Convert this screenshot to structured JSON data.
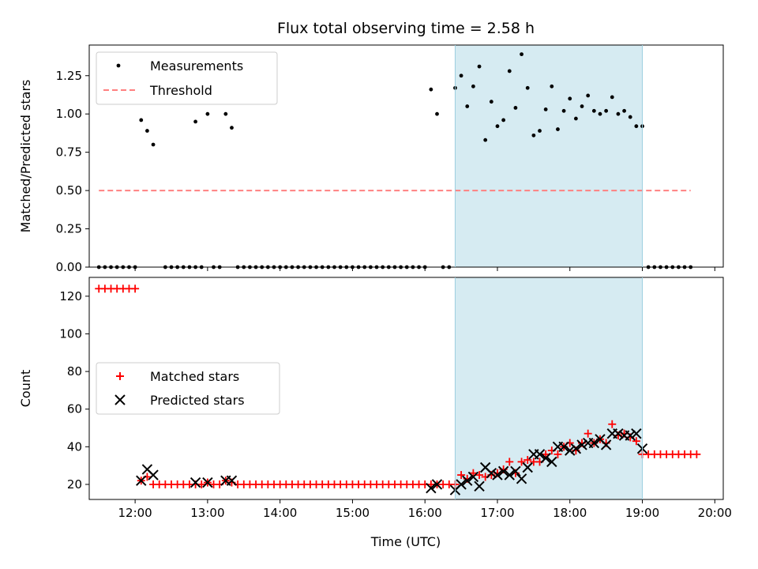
{
  "chart_data": [
    {
      "type": "scatter",
      "title": "Flux total observing time = 2.58 h",
      "ylabel": "Matched/Predicted stars",
      "xlabel": "",
      "xlim": [
        "11:22",
        "20:07"
      ],
      "ylim": [
        0,
        1.45
      ],
      "yticks": [
        "0.00",
        "0.25",
        "0.50",
        "0.75",
        "1.00",
        "1.25"
      ],
      "ytick_values": [
        0,
        0.25,
        0.5,
        0.75,
        1.0,
        1.25
      ],
      "legend_position": "top-left",
      "shaded_region": {
        "from": "16:25",
        "to": "19:00",
        "color": "#add8e6"
      },
      "series": [
        {
          "name": "Measurements",
          "kind": "scatter",
          "color": "#000000",
          "points": [
            [
              "11:30",
              0
            ],
            [
              "11:35",
              0
            ],
            [
              "11:40",
              0
            ],
            [
              "11:45",
              0
            ],
            [
              "11:50",
              0
            ],
            [
              "11:55",
              0
            ],
            [
              "12:00",
              0
            ],
            [
              "12:05",
              0.96
            ],
            [
              "12:10",
              0.89
            ],
            [
              "12:15",
              0.8
            ],
            [
              "12:25",
              0
            ],
            [
              "12:30",
              0
            ],
            [
              "12:35",
              0
            ],
            [
              "12:40",
              0
            ],
            [
              "12:45",
              0
            ],
            [
              "12:50",
              0
            ],
            [
              "12:55",
              0
            ],
            [
              "12:50",
              0.95
            ],
            [
              "13:00",
              1.0
            ],
            [
              "13:05",
              0
            ],
            [
              "13:10",
              0
            ],
            [
              "13:15",
              1.0
            ],
            [
              "13:20",
              0.91
            ],
            [
              "13:25",
              0
            ],
            [
              "13:30",
              0
            ],
            [
              "13:35",
              0
            ],
            [
              "13:40",
              0
            ],
            [
              "13:45",
              0
            ],
            [
              "13:50",
              0
            ],
            [
              "13:55",
              0
            ],
            [
              "14:00",
              0
            ],
            [
              "14:05",
              0
            ],
            [
              "14:10",
              0
            ],
            [
              "14:15",
              0
            ],
            [
              "14:20",
              0
            ],
            [
              "14:25",
              0
            ],
            [
              "14:30",
              0
            ],
            [
              "14:35",
              0
            ],
            [
              "14:40",
              0
            ],
            [
              "14:45",
              0
            ],
            [
              "14:50",
              0
            ],
            [
              "14:55",
              0
            ],
            [
              "15:00",
              0
            ],
            [
              "15:05",
              0
            ],
            [
              "15:10",
              0
            ],
            [
              "15:15",
              0
            ],
            [
              "15:20",
              0
            ],
            [
              "15:25",
              0
            ],
            [
              "15:30",
              0
            ],
            [
              "15:35",
              0
            ],
            [
              "15:40",
              0
            ],
            [
              "15:45",
              0
            ],
            [
              "15:50",
              0
            ],
            [
              "15:55",
              0
            ],
            [
              "16:00",
              0
            ],
            [
              "16:05",
              1.16
            ],
            [
              "16:10",
              1.0
            ],
            [
              "16:15",
              0
            ],
            [
              "16:20",
              0
            ],
            [
              "16:25",
              1.17
            ],
            [
              "16:30",
              1.25
            ],
            [
              "16:35",
              1.05
            ],
            [
              "16:40",
              1.18
            ],
            [
              "16:45",
              1.31
            ],
            [
              "16:50",
              0.83
            ],
            [
              "16:55",
              1.08
            ],
            [
              "17:00",
              0.92
            ],
            [
              "17:05",
              0.96
            ],
            [
              "17:10",
              1.28
            ],
            [
              "17:15",
              1.04
            ],
            [
              "17:20",
              1.39
            ],
            [
              "17:25",
              1.17
            ],
            [
              "17:30",
              0.86
            ],
            [
              "17:35",
              0.89
            ],
            [
              "17:40",
              1.03
            ],
            [
              "17:45",
              1.18
            ],
            [
              "17:50",
              0.9
            ],
            [
              "17:55",
              1.02
            ],
            [
              "18:00",
              1.1
            ],
            [
              "18:05",
              0.97
            ],
            [
              "18:10",
              1.05
            ],
            [
              "18:15",
              1.12
            ],
            [
              "18:20",
              1.02
            ],
            [
              "18:25",
              1.0
            ],
            [
              "18:30",
              1.02
            ],
            [
              "18:35",
              1.11
            ],
            [
              "18:40",
              1.0
            ],
            [
              "18:45",
              1.02
            ],
            [
              "18:50",
              0.98
            ],
            [
              "18:55",
              0.92
            ],
            [
              "19:00",
              0.92
            ],
            [
              "19:05",
              0
            ],
            [
              "19:10",
              0
            ],
            [
              "19:15",
              0
            ],
            [
              "19:20",
              0
            ],
            [
              "19:25",
              0
            ],
            [
              "19:30",
              0
            ],
            [
              "19:35",
              0
            ],
            [
              "19:40",
              0
            ]
          ]
        },
        {
          "name": "Threshold",
          "kind": "line",
          "color": "#ff8080",
          "dashed": true,
          "points": [
            [
              "11:30",
              0.5
            ],
            [
              "19:40",
              0.5
            ]
          ]
        }
      ]
    },
    {
      "type": "scatter",
      "title": "",
      "ylabel": "Count",
      "xlabel": "Time (UTC)",
      "xlim": [
        "11:22",
        "20:07"
      ],
      "ylim": [
        12,
        130
      ],
      "yticks": [
        "20",
        "40",
        "60",
        "80",
        "100",
        "120"
      ],
      "ytick_values": [
        20,
        40,
        60,
        80,
        100,
        120
      ],
      "xticks": [
        "12:00",
        "13:00",
        "14:00",
        "15:00",
        "16:00",
        "17:00",
        "18:00",
        "19:00",
        "20:00"
      ],
      "legend_position": "center-left",
      "shaded_region": {
        "from": "16:25",
        "to": "19:00",
        "color": "#add8e6"
      },
      "series": [
        {
          "name": "Matched stars",
          "kind": "plus",
          "color": "#ff0000",
          "points": [
            [
              "11:30",
              124
            ],
            [
              "11:35",
              124
            ],
            [
              "11:40",
              124
            ],
            [
              "11:45",
              124
            ],
            [
              "11:50",
              124
            ],
            [
              "11:55",
              124
            ],
            [
              "12:00",
              124
            ],
            [
              "12:05",
              22
            ],
            [
              "12:10",
              24
            ],
            [
              "12:15",
              20
            ],
            [
              "12:20",
              20
            ],
            [
              "12:25",
              20
            ],
            [
              "12:30",
              20
            ],
            [
              "12:35",
              20
            ],
            [
              "12:40",
              20
            ],
            [
              "12:45",
              20
            ],
            [
              "12:50",
              20
            ],
            [
              "12:55",
              20
            ],
            [
              "13:00",
              21
            ],
            [
              "13:05",
              20
            ],
            [
              "13:10",
              20
            ],
            [
              "13:15",
              22
            ],
            [
              "13:20",
              21
            ],
            [
              "13:25",
              20
            ],
            [
              "13:30",
              20
            ],
            [
              "13:35",
              20
            ],
            [
              "13:40",
              20
            ],
            [
              "13:45",
              20
            ],
            [
              "13:50",
              20
            ],
            [
              "13:55",
              20
            ],
            [
              "14:00",
              20
            ],
            [
              "14:05",
              20
            ],
            [
              "14:10",
              20
            ],
            [
              "14:15",
              20
            ],
            [
              "14:20",
              20
            ],
            [
              "14:25",
              20
            ],
            [
              "14:30",
              20
            ],
            [
              "14:35",
              20
            ],
            [
              "14:40",
              20
            ],
            [
              "14:45",
              20
            ],
            [
              "14:50",
              20
            ],
            [
              "14:55",
              20
            ],
            [
              "15:00",
              20
            ],
            [
              "15:05",
              20
            ],
            [
              "15:10",
              20
            ],
            [
              "15:15",
              20
            ],
            [
              "15:20",
              20
            ],
            [
              "15:25",
              20
            ],
            [
              "15:30",
              20
            ],
            [
              "15:35",
              20
            ],
            [
              "15:40",
              20
            ],
            [
              "15:45",
              20
            ],
            [
              "15:50",
              20
            ],
            [
              "15:55",
              20
            ],
            [
              "16:00",
              20
            ],
            [
              "16:05",
              20
            ],
            [
              "16:10",
              20
            ],
            [
              "16:15",
              20
            ],
            [
              "16:20",
              20
            ],
            [
              "16:25",
              20
            ],
            [
              "16:30",
              25
            ],
            [
              "16:35",
              23
            ],
            [
              "16:40",
              26
            ],
            [
              "16:45",
              25
            ],
            [
              "16:50",
              24
            ],
            [
              "16:55",
              25
            ],
            [
              "17:00",
              26
            ],
            [
              "17:05",
              28
            ],
            [
              "17:10",
              32
            ],
            [
              "17:15",
              26
            ],
            [
              "17:20",
              32
            ],
            [
              "17:25",
              33
            ],
            [
              "17:30",
              32
            ],
            [
              "17:35",
              32
            ],
            [
              "17:40",
              36
            ],
            [
              "17:45",
              38
            ],
            [
              "17:50",
              36
            ],
            [
              "17:55",
              40
            ],
            [
              "18:00",
              42
            ],
            [
              "18:05",
              38
            ],
            [
              "18:10",
              42
            ],
            [
              "18:15",
              47
            ],
            [
              "18:20",
              42
            ],
            [
              "18:25",
              44
            ],
            [
              "18:30",
              42
            ],
            [
              "18:35",
              52
            ],
            [
              "18:40",
              46
            ],
            [
              "18:45",
              47
            ],
            [
              "18:50",
              45
            ],
            [
              "18:55",
              43
            ],
            [
              "19:00",
              36
            ],
            [
              "19:05",
              36
            ],
            [
              "19:10",
              36
            ],
            [
              "19:15",
              36
            ],
            [
              "19:20",
              36
            ],
            [
              "19:25",
              36
            ],
            [
              "19:30",
              36
            ],
            [
              "19:35",
              36
            ],
            [
              "19:40",
              36
            ],
            [
              "19:45",
              36
            ]
          ]
        },
        {
          "name": "Predicted stars",
          "kind": "cross",
          "color": "#000000",
          "points": [
            [
              "12:05",
              22
            ],
            [
              "12:10",
              28
            ],
            [
              "12:15",
              25
            ],
            [
              "12:50",
              21
            ],
            [
              "13:00",
              21
            ],
            [
              "13:15",
              22
            ],
            [
              "13:20",
              22
            ],
            [
              "16:05",
              18
            ],
            [
              "16:10",
              20
            ],
            [
              "16:25",
              17
            ],
            [
              "16:30",
              20
            ],
            [
              "16:35",
              22
            ],
            [
              "16:40",
              24
            ],
            [
              "16:45",
              19
            ],
            [
              "16:50",
              29
            ],
            [
              "16:55",
              26
            ],
            [
              "17:00",
              25
            ],
            [
              "17:05",
              27
            ],
            [
              "17:10",
              25
            ],
            [
              "17:15",
              27
            ],
            [
              "17:20",
              23
            ],
            [
              "17:25",
              29
            ],
            [
              "17:30",
              36
            ],
            [
              "17:35",
              36
            ],
            [
              "17:40",
              34
            ],
            [
              "17:45",
              32
            ],
            [
              "17:50",
              40
            ],
            [
              "17:55",
              40
            ],
            [
              "18:00",
              38
            ],
            [
              "18:05",
              39
            ],
            [
              "18:10",
              41
            ],
            [
              "18:15",
              42
            ],
            [
              "18:20",
              42
            ],
            [
              "18:25",
              44
            ],
            [
              "18:30",
              41
            ],
            [
              "18:35",
              47
            ],
            [
              "18:40",
              47
            ],
            [
              "18:45",
              46
            ],
            [
              "18:50",
              46
            ],
            [
              "18:55",
              47
            ],
            [
              "19:00",
              39
            ]
          ]
        }
      ]
    }
  ]
}
